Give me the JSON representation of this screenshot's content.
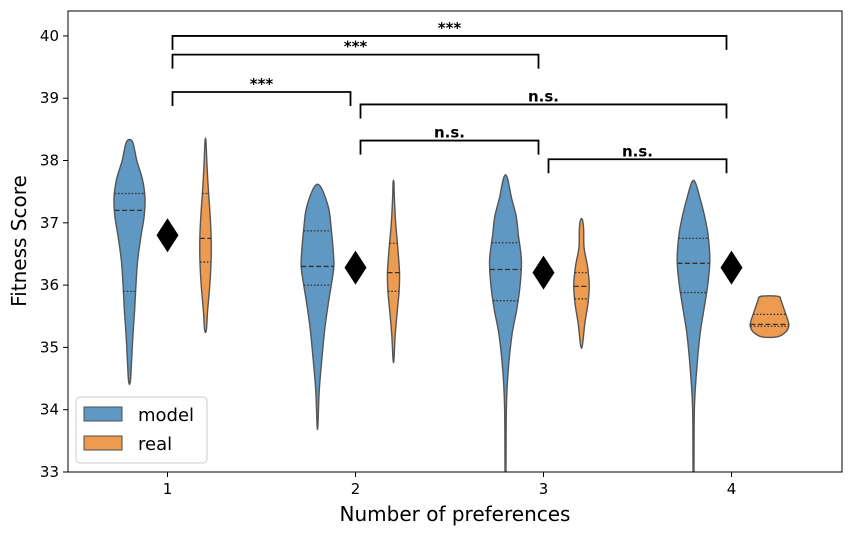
{
  "chart_data": {
    "type": "violin",
    "xlabel": "Number of preferences",
    "ylabel": "Fitness Score",
    "ylim": [
      33,
      40.4
    ],
    "yticks": [
      33,
      34,
      35,
      36,
      37,
      38,
      39,
      40
    ],
    "categories": [
      1,
      2,
      3,
      4
    ],
    "legend": {
      "placement": "lower-left"
    },
    "series": [
      {
        "name": "model",
        "color": "#5f98c2",
        "violins": [
          {
            "category": 1,
            "min": 34.45,
            "max": 38.3,
            "quartiles": [
              35.9,
              37.2,
              37.47
            ],
            "profile": [
              [
                34.45,
                0.02
              ],
              [
                34.8,
                0.05
              ],
              [
                35.2,
                0.08
              ],
              [
                35.6,
                0.12
              ],
              [
                36.0,
                0.15
              ],
              [
                36.4,
                0.19
              ],
              [
                36.8,
                0.27
              ],
              [
                37.1,
                0.34
              ],
              [
                37.4,
                0.36
              ],
              [
                37.7,
                0.3
              ],
              [
                38.0,
                0.17
              ],
              [
                38.3,
                0.07
              ]
            ]
          },
          {
            "category": 2,
            "min": 33.75,
            "max": 37.6,
            "quartiles": [
              36.0,
              36.3,
              36.87
            ],
            "profile": [
              [
                33.75,
                0.01
              ],
              [
                34.3,
                0.04
              ],
              [
                34.8,
                0.1
              ],
              [
                35.3,
                0.17
              ],
              [
                35.7,
                0.25
              ],
              [
                36.0,
                0.32
              ],
              [
                36.3,
                0.38
              ],
              [
                36.6,
                0.36
              ],
              [
                36.9,
                0.32
              ],
              [
                37.2,
                0.27
              ],
              [
                37.45,
                0.16
              ],
              [
                37.6,
                0.05
              ]
            ]
          },
          {
            "category": 3,
            "min": 33.0,
            "max": 37.73,
            "quartiles": [
              35.75,
              36.25,
              36.68
            ],
            "profile": [
              [
                33.0,
                0.01
              ],
              [
                34.0,
                0.02
              ],
              [
                34.6,
                0.06
              ],
              [
                35.2,
                0.15
              ],
              [
                35.6,
                0.26
              ],
              [
                36.0,
                0.34
              ],
              [
                36.4,
                0.37
              ],
              [
                36.8,
                0.3
              ],
              [
                37.1,
                0.25
              ],
              [
                37.4,
                0.14
              ],
              [
                37.73,
                0.04
              ]
            ]
          },
          {
            "category": 4,
            "min": 33.0,
            "max": 37.65,
            "quartiles": [
              35.88,
              36.35,
              36.75
            ],
            "profile": [
              [
                33.0,
                0.01
              ],
              [
                34.0,
                0.02
              ],
              [
                34.6,
                0.07
              ],
              [
                35.2,
                0.15
              ],
              [
                35.6,
                0.24
              ],
              [
                36.0,
                0.33
              ],
              [
                36.4,
                0.38
              ],
              [
                36.8,
                0.34
              ],
              [
                37.1,
                0.26
              ],
              [
                37.4,
                0.15
              ],
              [
                37.65,
                0.04
              ]
            ]
          }
        ]
      },
      {
        "name": "real",
        "color": "#ee9b52",
        "violins": [
          {
            "category": 1,
            "min": 35.28,
            "max": 38.32,
            "quartiles": [
              36.37,
              36.75,
              37.47
            ],
            "profile": [
              [
                35.28,
                0.02
              ],
              [
                35.6,
                0.05
              ],
              [
                36.0,
                0.1
              ],
              [
                36.4,
                0.13
              ],
              [
                36.8,
                0.13
              ],
              [
                37.2,
                0.1
              ],
              [
                37.6,
                0.06
              ],
              [
                38.0,
                0.03
              ],
              [
                38.32,
                0.01
              ]
            ]
          },
          {
            "category": 2,
            "min": 34.8,
            "max": 37.65,
            "quartiles": [
              35.9,
              36.2,
              36.67
            ],
            "profile": [
              [
                34.8,
                0.01
              ],
              [
                35.2,
                0.04
              ],
              [
                35.6,
                0.09
              ],
              [
                35.9,
                0.13
              ],
              [
                36.2,
                0.14
              ],
              [
                36.6,
                0.1
              ],
              [
                37.0,
                0.05
              ],
              [
                37.4,
                0.02
              ],
              [
                37.65,
                0.01
              ]
            ]
          },
          {
            "category": 3,
            "min": 35.03,
            "max": 37.05,
            "quartiles": [
              35.78,
              35.98,
              36.2
            ],
            "profile": [
              [
                35.03,
                0.02
              ],
              [
                35.4,
                0.08
              ],
              [
                35.7,
                0.15
              ],
              [
                36.0,
                0.18
              ],
              [
                36.3,
                0.14
              ],
              [
                36.6,
                0.06
              ],
              [
                36.9,
                0.05
              ],
              [
                37.05,
                0.02
              ]
            ]
          },
          {
            "category": 4,
            "min": 35.17,
            "max": 35.82,
            "quartiles": [
              35.34,
              35.37,
              35.53
            ],
            "profile": [
              [
                35.17,
                0.18
              ],
              [
                35.25,
                0.38
              ],
              [
                35.35,
                0.45
              ],
              [
                35.45,
                0.42
              ],
              [
                35.55,
                0.37
              ],
              [
                35.65,
                0.32
              ],
              [
                35.75,
                0.27
              ],
              [
                35.82,
                0.2
              ]
            ]
          }
        ]
      }
    ],
    "mean_markers": [
      {
        "category": 1,
        "value": 36.8
      },
      {
        "category": 2,
        "value": 36.28
      },
      {
        "category": 3,
        "value": 36.2
      },
      {
        "category": 4,
        "value": 36.28
      }
    ],
    "significance": [
      {
        "from": 1,
        "to": 4,
        "y": 40.0,
        "label": "***"
      },
      {
        "from": 1,
        "to": 3,
        "y": 39.7,
        "label": "***"
      },
      {
        "from": 1,
        "to": 2,
        "y": 39.1,
        "label": "***"
      },
      {
        "from": 2,
        "to": 4,
        "y": 38.9,
        "label": "n.s."
      },
      {
        "from": 2,
        "to": 3,
        "y": 38.32,
        "label": "n.s."
      },
      {
        "from": 3,
        "to": 4,
        "y": 38.02,
        "label": "n.s."
      }
    ]
  }
}
